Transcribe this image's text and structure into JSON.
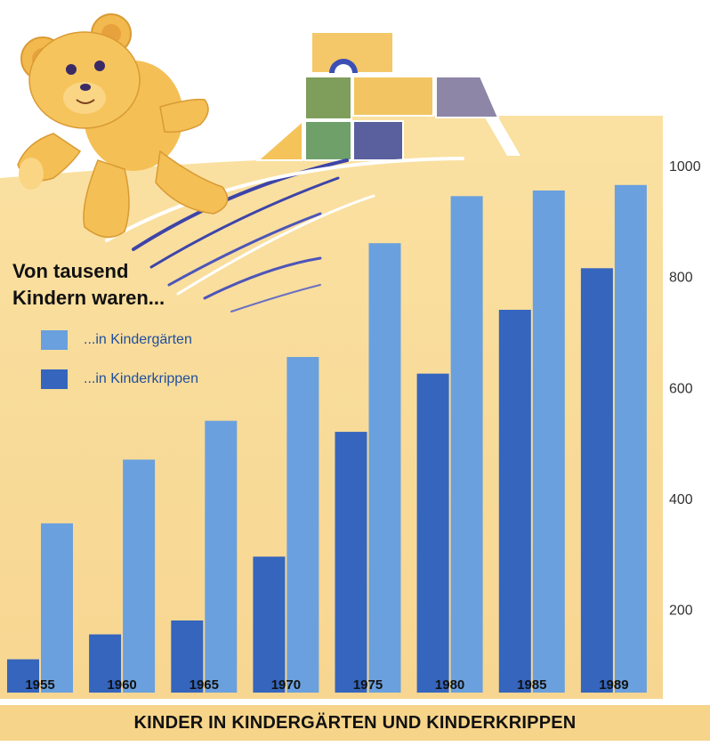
{
  "legend": {
    "title": "Von tausend\nKindern waren...",
    "items": [
      {
        "label": "...in Kindergärten",
        "color": "#6aa0de"
      },
      {
        "label": "...in Kinderkrippen",
        "color": "#3565bd"
      }
    ]
  },
  "footer": {
    "title": "KINDER IN KINDERGÄRTEN UND KINDERKRIPPEN"
  },
  "chart_data": {
    "type": "bar",
    "title": "KINDER IN KINDERGÄRTEN UND KINDERKRIPPEN",
    "categories": [
      "1955",
      "1960",
      "1965",
      "1970",
      "1975",
      "1980",
      "1985",
      "1989"
    ],
    "series": [
      {
        "name": "...in Kinderkrippen",
        "color": "#3565bd",
        "values": [
          110,
          155,
          180,
          295,
          520,
          625,
          740,
          815
        ]
      },
      {
        "name": "...in Kindergärten",
        "color": "#6aa0de",
        "values": [
          355,
          470,
          540,
          655,
          860,
          945,
          955,
          965
        ]
      }
    ],
    "yticks": [
      200,
      400,
      600,
      800,
      1000
    ],
    "ylim": [
      50,
      1000
    ],
    "xlabel": "",
    "ylabel": "",
    "grid": false,
    "legend_position": "top-left"
  }
}
